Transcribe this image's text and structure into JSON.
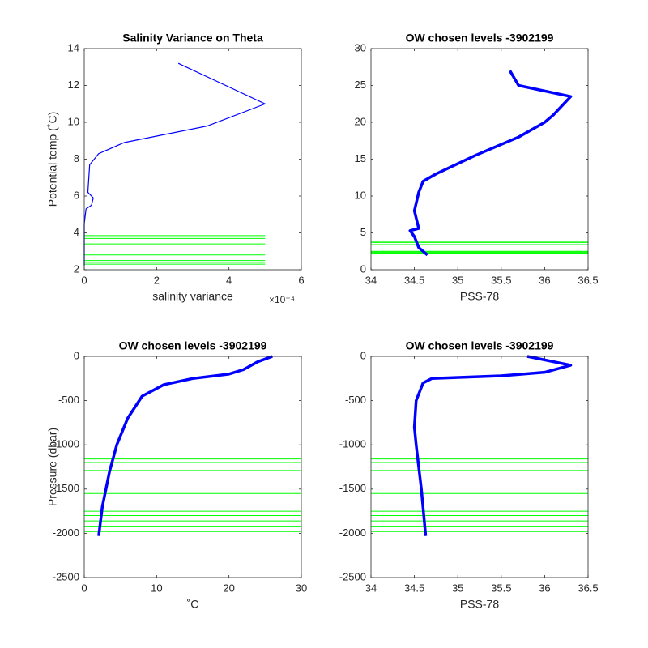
{
  "chart_data": [
    {
      "type": "line",
      "title": "Salinity Variance on Theta",
      "xlabel": "salinity variance",
      "ylabel": "Potential temp (˚C)",
      "x_exponent_label": "×10⁻⁴",
      "xlim": [
        0,
        6
      ],
      "xticks": [
        0,
        2,
        4,
        6
      ],
      "ylim": [
        2,
        14
      ],
      "yticks": [
        2,
        4,
        6,
        8,
        10,
        12,
        14
      ],
      "lines": [
        {
          "color": "#0000ff",
          "x": [
            2.6,
            5.0,
            3.4,
            1.1,
            0.4,
            0.15,
            0.1,
            0.25,
            0.2,
            0.05,
            0,
            0
          ],
          "y": [
            13.2,
            11.0,
            9.8,
            8.9,
            8.3,
            7.7,
            6.2,
            5.9,
            5.5,
            5.3,
            4.5,
            2.2
          ]
        }
      ],
      "levels": {
        "color": "#00ff00",
        "xrange": [
          0,
          5
        ],
        "values": [
          3.85,
          3.7,
          3.4,
          2.8,
          2.5,
          2.4,
          2.3,
          2.2
        ]
      }
    },
    {
      "type": "line",
      "title": "OW chosen levels -3902199",
      "xlabel": "PSS-78",
      "xlim": [
        34,
        36.5
      ],
      "xticks": [
        34,
        34.5,
        35,
        35.5,
        36,
        36.5
      ],
      "ylim": [
        0,
        30
      ],
      "yticks": [
        0,
        5,
        10,
        15,
        20,
        25,
        30
      ],
      "lines": [
        {
          "color": "#0000ff",
          "x": [
            34.65,
            34.55,
            34.5,
            34.45,
            34.55,
            34.5,
            34.55,
            34.6,
            34.75,
            35.2,
            35.7,
            36.0,
            36.1,
            36.3,
            35.7,
            35.6
          ],
          "y": [
            2,
            3,
            4.5,
            5.3,
            5.6,
            8,
            10.5,
            12,
            13,
            15.5,
            18,
            20,
            21,
            23.5,
            25,
            27
          ]
        }
      ],
      "levels": {
        "color": "#00ff00",
        "xrange": [
          34,
          36.5
        ],
        "values": [
          3.85,
          3.7,
          3.4,
          2.8,
          2.5,
          2.4,
          2.3,
          2.2
        ]
      }
    },
    {
      "type": "line",
      "title": "OW chosen levels -3902199",
      "xlabel": "˚C",
      "ylabel": "Pressure (dbar)",
      "xlim": [
        0,
        30
      ],
      "xticks": [
        0,
        10,
        20,
        30
      ],
      "ylim": [
        -2500,
        0
      ],
      "yticks": [
        -2500,
        -2000,
        -1500,
        -1000,
        -500,
        0
      ],
      "lines": [
        {
          "color": "#0000ff",
          "x": [
            2,
            2.5,
            3.5,
            4.5,
            6,
            8,
            11,
            15,
            20,
            22,
            24,
            26
          ],
          "y": [
            -2030,
            -1700,
            -1300,
            -1000,
            -700,
            -450,
            -320,
            -250,
            -200,
            -150,
            -60,
            0
          ]
        }
      ],
      "levels": {
        "color": "#00ff00",
        "xrange": [
          0,
          30
        ],
        "values": [
          -1160,
          -1200,
          -1290,
          -1550,
          -1750,
          -1800,
          -1860,
          -1920,
          -1980
        ]
      }
    },
    {
      "type": "line",
      "title": "OW chosen levels -3902199",
      "xlabel": "PSS-78",
      "xlim": [
        34,
        36.5
      ],
      "xticks": [
        34,
        34.5,
        35,
        35.5,
        36,
        36.5
      ],
      "ylim": [
        -2500,
        0
      ],
      "yticks": [
        -2500,
        -2000,
        -1500,
        -1000,
        -500,
        0
      ],
      "lines": [
        {
          "color": "#0000ff",
          "x": [
            34.63,
            34.58,
            34.52,
            34.5,
            34.52,
            34.6,
            34.7,
            35.5,
            36.0,
            36.3,
            35.8
          ],
          "y": [
            -2030,
            -1500,
            -1000,
            -800,
            -500,
            -300,
            -250,
            -220,
            -180,
            -100,
            0
          ]
        }
      ],
      "levels": {
        "color": "#00ff00",
        "xrange": [
          34,
          36.5
        ],
        "values": [
          -1160,
          -1200,
          -1290,
          -1550,
          -1750,
          -1800,
          -1860,
          -1920,
          -1980
        ]
      }
    }
  ]
}
